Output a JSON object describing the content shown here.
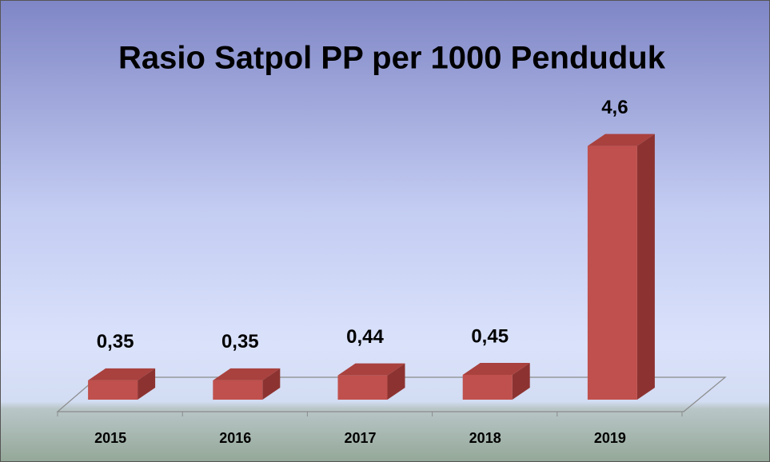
{
  "chart_data": {
    "type": "bar3d",
    "title": "Rasio Satpol PP per 1000 Penduduk",
    "categories": [
      "2015",
      "2016",
      "2017",
      "2018",
      "2019"
    ],
    "values": [
      0.35,
      0.35,
      0.44,
      0.45,
      4.6
    ],
    "value_labels": [
      "0,35",
      "0,35",
      "0,44",
      "0,45",
      "4,6"
    ],
    "color": "#c0504d",
    "ylim": [
      0,
      5
    ]
  }
}
